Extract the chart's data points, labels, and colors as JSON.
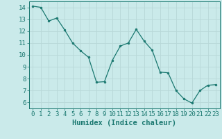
{
  "x": [
    0,
    1,
    2,
    3,
    4,
    5,
    6,
    7,
    8,
    9,
    10,
    11,
    12,
    13,
    14,
    15,
    16,
    17,
    18,
    19,
    20,
    21,
    22,
    23
  ],
  "y": [
    14.1,
    14.0,
    12.85,
    13.1,
    12.1,
    11.0,
    10.35,
    9.8,
    7.7,
    7.75,
    9.55,
    10.75,
    11.0,
    12.15,
    11.15,
    10.4,
    8.55,
    8.5,
    7.0,
    6.3,
    5.95,
    7.0,
    7.45,
    7.5
  ],
  "line_color": "#1a7870",
  "marker_color": "#1a7870",
  "bg_color": "#caeaea",
  "grid_color": "#b8d8d8",
  "xlabel": "Humidex (Indice chaleur)",
  "xlim": [
    -0.5,
    23.5
  ],
  "ylim": [
    5.5,
    14.5
  ],
  "yticks": [
    6,
    7,
    8,
    9,
    10,
    11,
    12,
    13,
    14
  ],
  "xticks": [
    0,
    1,
    2,
    3,
    4,
    5,
    6,
    7,
    8,
    9,
    10,
    11,
    12,
    13,
    14,
    15,
    16,
    17,
    18,
    19,
    20,
    21,
    22,
    23
  ],
  "tick_color": "#1a7870",
  "label_color": "#1a7870",
  "font_size_xlabel": 7.5,
  "font_size_ticks": 6.5
}
